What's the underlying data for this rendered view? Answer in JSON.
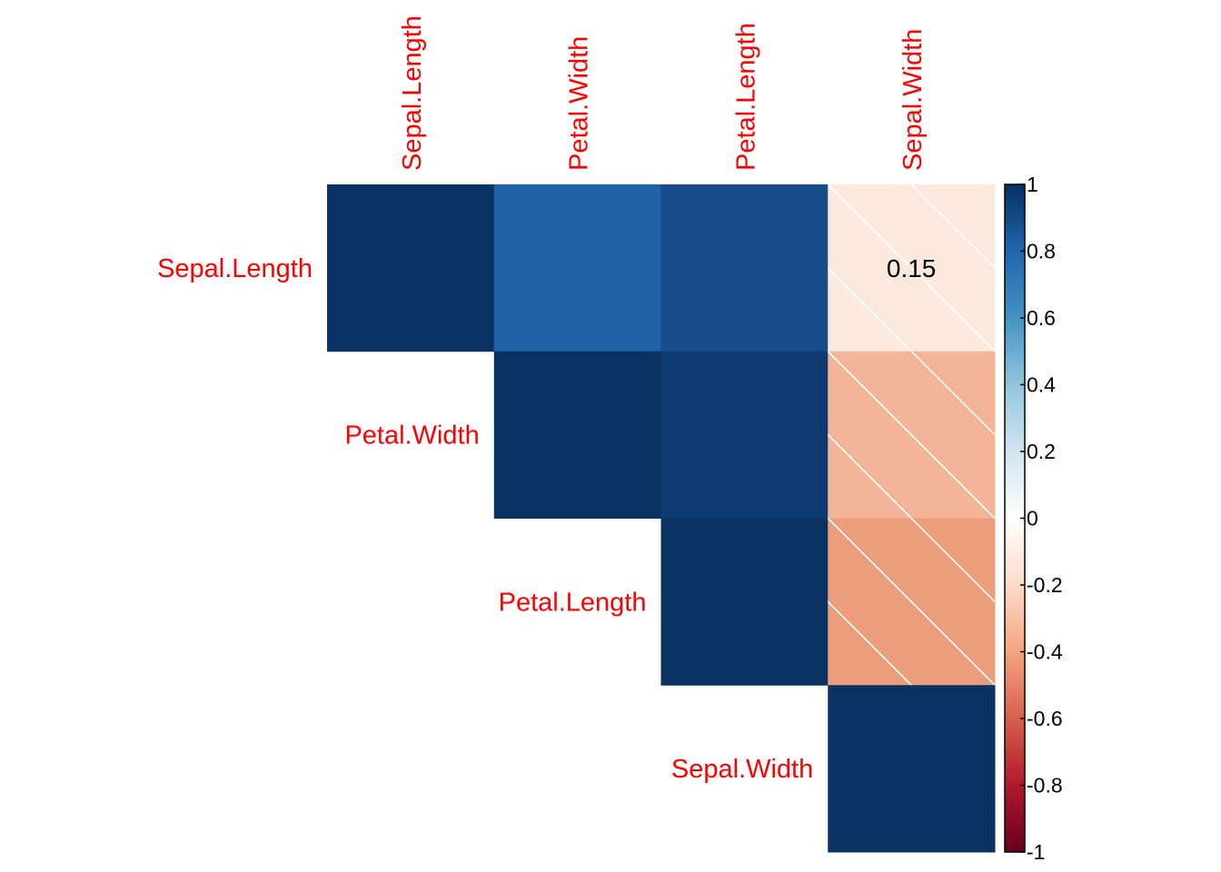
{
  "chart_data": {
    "type": "heatmap",
    "title": "",
    "variables": [
      "Sepal.Length",
      "Petal.Width",
      "Petal.Length",
      "Sepal.Width"
    ],
    "label_color": "#FF0000",
    "layout": "upper-triangle",
    "matrix": [
      [
        1.0,
        0.82,
        0.87,
        -0.12
      ],
      [
        0.82,
        1.0,
        0.96,
        -0.37
      ],
      [
        0.87,
        0.96,
        1.0,
        -0.43
      ],
      [
        -0.12,
        -0.37,
        -0.43,
        1.0
      ]
    ],
    "cells": [
      {
        "row": 0,
        "col": 0,
        "value": 1.0,
        "color": "#0A3263",
        "label": null,
        "crossed": false
      },
      {
        "row": 0,
        "col": 1,
        "value": 0.82,
        "color": "#2060A5",
        "label": null,
        "crossed": false
      },
      {
        "row": 0,
        "col": 2,
        "value": 0.87,
        "color": "#164D8A",
        "label": null,
        "crossed": false
      },
      {
        "row": 0,
        "col": 3,
        "value": -0.12,
        "color": "#FBE9DE",
        "label": "0.15",
        "crossed": true
      },
      {
        "row": 1,
        "col": 1,
        "value": 1.0,
        "color": "#0A3263",
        "label": null,
        "crossed": false
      },
      {
        "row": 1,
        "col": 2,
        "value": 0.96,
        "color": "#0C3A71",
        "label": null,
        "crossed": false
      },
      {
        "row": 1,
        "col": 3,
        "value": -0.37,
        "color": "#F4B497",
        "label": null,
        "crossed": true
      },
      {
        "row": 2,
        "col": 2,
        "value": 1.0,
        "color": "#0A3263",
        "label": null,
        "crossed": false
      },
      {
        "row": 2,
        "col": 3,
        "value": -0.43,
        "color": "#EC9D7C",
        "label": null,
        "crossed": true
      },
      {
        "row": 3,
        "col": 3,
        "value": 1.0,
        "color": "#0A3263",
        "label": null,
        "crossed": false
      }
    ],
    "colorbar": {
      "range": [
        -1,
        1
      ],
      "ticks": [
        "1",
        "0.8",
        "0.6",
        "0.4",
        "0.2",
        "0",
        "-0.2",
        "-0.4",
        "-0.6",
        "-0.8",
        "-1"
      ],
      "tick_values": [
        1,
        0.8,
        0.6,
        0.4,
        0.2,
        0,
        -0.2,
        -0.4,
        -0.6,
        -0.8,
        -1
      ],
      "colors": [
        "#67001F",
        "#B2182B",
        "#D6604D",
        "#F4A582",
        "#FDDBC7",
        "#FFFFFF",
        "#D1E5F0",
        "#92C5DE",
        "#4393C3",
        "#2166AC",
        "#053061"
      ]
    }
  }
}
